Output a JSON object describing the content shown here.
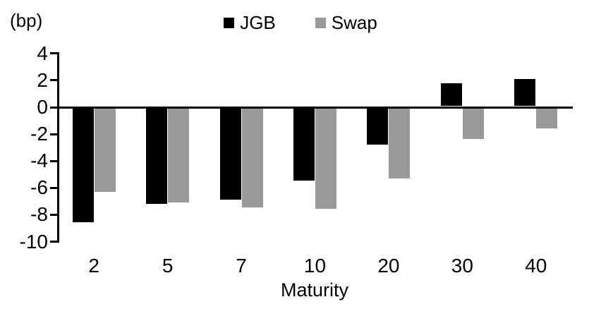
{
  "chart_data": {
    "type": "bar",
    "title": "",
    "unit_label": "(bp)",
    "xlabel": "Maturity",
    "ylabel": "",
    "categories": [
      "2",
      "5",
      "7",
      "10",
      "20",
      "30",
      "40"
    ],
    "series": [
      {
        "name": "JGB",
        "color": "#000000",
        "values": [
          -8.5,
          -7.1,
          -6.8,
          -5.4,
          -2.7,
          1.7,
          2.0
        ]
      },
      {
        "name": "Swap",
        "color": "#999999",
        "values": [
          -6.2,
          -7.0,
          -7.4,
          -7.5,
          -5.2,
          -2.3,
          -1.5
        ]
      }
    ],
    "yticks": [
      4,
      2,
      0,
      -2,
      -4,
      -6,
      -8,
      -10
    ],
    "ylim": [
      -10,
      4
    ],
    "grid": false,
    "legend_position": "top-center",
    "axis_color": "#000000",
    "background_color": "#ffffff"
  }
}
